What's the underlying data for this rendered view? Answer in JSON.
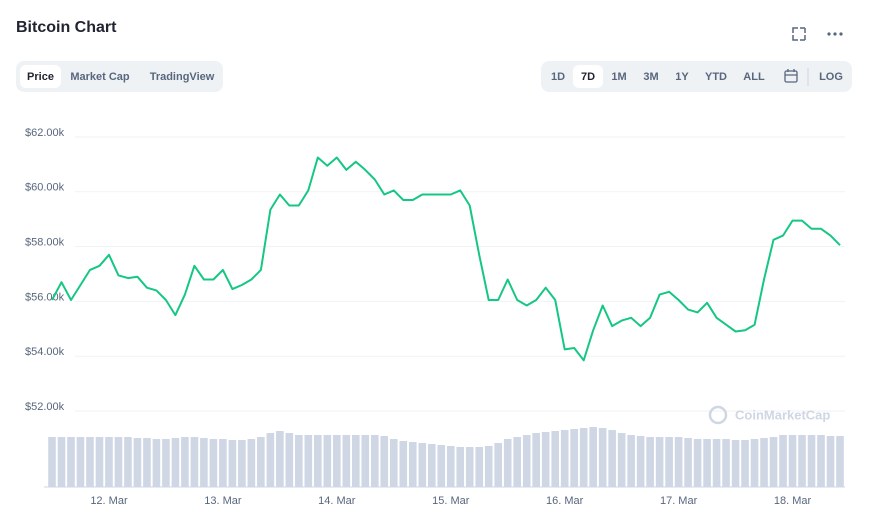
{
  "chart_data": {
    "type": "line",
    "title": "Bitcoin Chart",
    "tabs": [
      "Price",
      "Market Cap",
      "TradingView"
    ],
    "active_tab": 0,
    "ranges": [
      "1D",
      "7D",
      "1M",
      "3M",
      "1Y",
      "YTD",
      "ALL"
    ],
    "active_range": 1,
    "log_button": "LOG",
    "watermark": "CoinMarketCap",
    "color": "#16c784",
    "categories": [
      null,
      null,
      null,
      null,
      null,
      null,
      "12. Mar",
      null,
      null,
      null,
      null,
      null,
      null,
      null,
      null,
      null,
      null,
      null,
      "13. Mar",
      null,
      null,
      null,
      null,
      null,
      null,
      null,
      null,
      null,
      null,
      null,
      "14. Mar",
      null,
      null,
      null,
      null,
      null,
      null,
      null,
      null,
      null,
      null,
      null,
      "15. Mar",
      null,
      null,
      null,
      null,
      null,
      null,
      null,
      null,
      null,
      null,
      null,
      "16. Mar",
      null,
      null,
      null,
      null,
      null,
      null,
      null,
      null,
      null,
      null,
      null,
      "17. Mar",
      null,
      null,
      null,
      null,
      null,
      null,
      null,
      null,
      null,
      null,
      null,
      "18. Mar",
      null,
      null,
      null,
      null,
      null
    ],
    "values": [
      56050,
      56700,
      56050,
      56600,
      57150,
      57300,
      57700,
      56950,
      56850,
      56900,
      56500,
      56400,
      56050,
      55500,
      56250,
      57300,
      56800,
      56800,
      57150,
      56450,
      56600,
      56800,
      57150,
      59350,
      59900,
      59500,
      59500,
      60050,
      61250,
      60950,
      61250,
      60800,
      61100,
      60800,
      60450,
      59900,
      60050,
      59700,
      59700,
      59900,
      59900,
      59900,
      59900,
      60050,
      59500,
      57700,
      56050,
      56050,
      56800,
      56050,
      55850,
      56050,
      56500,
      56050,
      54250,
      54300,
      53850,
      54950,
      55850,
      55100,
      55300,
      55400,
      55100,
      55400,
      56250,
      56350,
      56050,
      55700,
      55600,
      55950,
      55400,
      55150,
      54900,
      54950,
      55150,
      56800,
      58250,
      58400,
      58950,
      58950,
      58650,
      58650,
      58400,
      58050
    ],
    "ylim": [
      52000,
      62000
    ],
    "yticks": [
      {
        "value": 52000,
        "label": "$52.00k"
      },
      {
        "value": 54000,
        "label": "$54.00k"
      },
      {
        "value": 56000,
        "label": "$56.00k"
      },
      {
        "value": 58000,
        "label": "$58.00k"
      },
      {
        "value": 60000,
        "label": "$60.00k"
      },
      {
        "value": 62000,
        "label": "$62.00k"
      }
    ],
    "grid": true,
    "volume": {
      "color": "#cfd6e4",
      "y2lim": [
        0,
        100
      ],
      "values": [
        50,
        50,
        50,
        50,
        50,
        50,
        50,
        50,
        50,
        49,
        49,
        48,
        48,
        49,
        50,
        50,
        49,
        48,
        48,
        47,
        47,
        48,
        50,
        54,
        56,
        54,
        52,
        52,
        52,
        52,
        52,
        52,
        52,
        52,
        52,
        51,
        48,
        46,
        45,
        44,
        43,
        42,
        41,
        40,
        40,
        40,
        41,
        44,
        48,
        50,
        52,
        54,
        55,
        56,
        57,
        58,
        59,
        60,
        59,
        57,
        54,
        52,
        51,
        50,
        50,
        50,
        50,
        49,
        48,
        48,
        48,
        48,
        47,
        47,
        48,
        49,
        50,
        52,
        52,
        52,
        52,
        52,
        51,
        51
      ]
    }
  }
}
